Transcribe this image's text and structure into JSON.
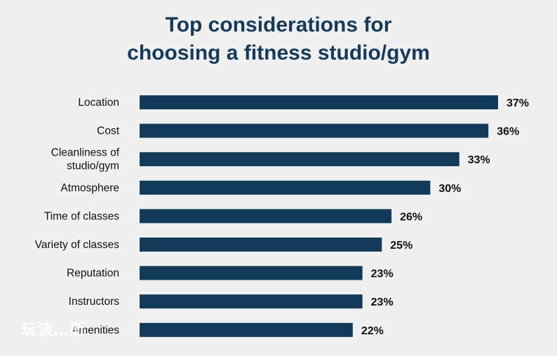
{
  "chart_data": {
    "type": "bar",
    "orientation": "horizontal",
    "title_lines": [
      "Top considerations for",
      "choosing a fitness studio/gym"
    ],
    "categories": [
      [
        "Location"
      ],
      [
        "Cost"
      ],
      [
        "Cleanliness of",
        "studio/gym"
      ],
      [
        "Atmosphere"
      ],
      [
        "Time of classes"
      ],
      [
        "Variety of classes"
      ],
      [
        "Reputation"
      ],
      [
        "Instructors"
      ],
      [
        "Amenities"
      ]
    ],
    "values": [
      37,
      36,
      33,
      30,
      26,
      25,
      23,
      23,
      22
    ],
    "value_labels": [
      "37%",
      "36%",
      "33%",
      "30%",
      "26%",
      "25%",
      "23%",
      "23%",
      "22%"
    ],
    "xlim": [
      0,
      37
    ],
    "grid": false,
    "legend": "none",
    "bar_color": "#123a59"
  },
  "watermark": "玩该…斯"
}
